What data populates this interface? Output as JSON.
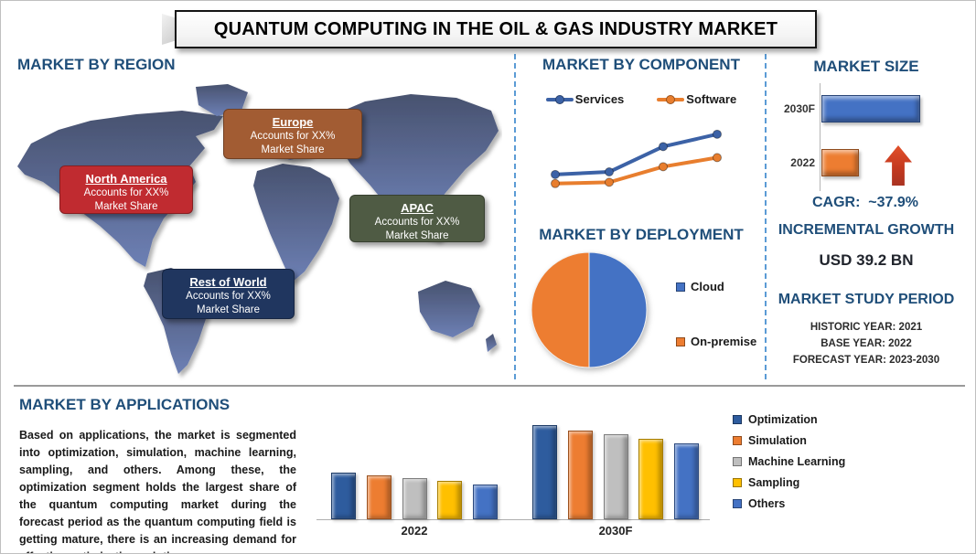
{
  "title": "QUANTUM COMPUTING IN THE OIL & GAS INDUSTRY MARKET",
  "region_section": {
    "heading": "MARKET BY REGION",
    "callouts": [
      {
        "name": "North America",
        "line1": "Accounts for XX%",
        "line2": "Market Share",
        "color": "#C02B30"
      },
      {
        "name": "Europe",
        "line1": "Accounts for XX%",
        "line2": "Market Share",
        "color": "#A25C33"
      },
      {
        "name": "APAC",
        "line1": "Accounts for XX%",
        "line2": "Market Share",
        "color": "#4F5B44"
      },
      {
        "name": "Rest of World",
        "line1": "Accounts for XX%",
        "line2": "Market Share",
        "color": "#20365F"
      }
    ]
  },
  "component_section": {
    "heading": "MARKET BY COMPONENT"
  },
  "deployment_section": {
    "heading": "MARKET BY DEPLOYMENT"
  },
  "market_size_section": {
    "heading": "MARKET SIZE",
    "cagr_label": "CAGR:",
    "cagr_value": "~37.9%"
  },
  "incremental_growth": {
    "heading": "INCREMENTAL GROWTH",
    "value": "USD 39.2 BN"
  },
  "study_period": {
    "heading": "MARKET STUDY PERIOD",
    "lines": [
      "HISTORIC YEAR: 2021",
      "BASE YEAR: 2022",
      "FORECAST YEAR: 2023-2030"
    ]
  },
  "applications_section": {
    "heading": "MARKET BY APPLICATIONS",
    "paragraph": "Based on applications, the market is segmented into optimization, simulation, machine learning, sampling, and others. Among these, the optimization segment holds the largest share of the quantum computing market during the forecast period as the quantum computing field is getting mature, there is an increasing demand for effective optimization solutions."
  },
  "chart_data": [
    {
      "id": "market-by-component",
      "type": "line",
      "title": "MARKET BY COMPONENT",
      "x": [
        1,
        2,
        3,
        4
      ],
      "series": [
        {
          "name": "Services",
          "color": "#3C62A6",
          "values": [
            1.7,
            1.9,
            3.85,
            4.8
          ]
        },
        {
          "name": "Software",
          "color": "#E87E2E",
          "values": [
            1.0,
            1.1,
            2.3,
            3.0
          ]
        }
      ],
      "ylim": [
        0,
        5.5
      ],
      "legend_position": "top",
      "grid": false,
      "axes_labeled": false
    },
    {
      "id": "market-by-deployment",
      "type": "pie",
      "title": "MARKET BY DEPLOYMENT",
      "labels": [
        "Cloud",
        "On-premise"
      ],
      "values": [
        50,
        50
      ],
      "colors": [
        "#4472C4",
        "#ED7D31"
      ],
      "legend_position": "right"
    },
    {
      "id": "market-size",
      "type": "bar",
      "orientation": "horizontal",
      "title": "MARKET SIZE",
      "categories": [
        "2030F",
        "2022"
      ],
      "values": [
        10.8,
        4.1
      ],
      "colors": [
        "#4472C4",
        "#ED7D31"
      ],
      "axes_labeled": false
    },
    {
      "id": "market-by-applications",
      "type": "bar",
      "title": "MARKET BY APPLICATIONS",
      "categories": [
        "2022",
        "2030F"
      ],
      "series": [
        {
          "name": "Optimization",
          "color": "#2E5C9E",
          "values": [
            5.1,
            10.3
          ]
        },
        {
          "name": "Simulation",
          "color": "#ED7D31",
          "values": [
            4.8,
            9.7
          ]
        },
        {
          "name": "Machine Learning",
          "color": "#BFBFBF",
          "values": [
            4.5,
            9.3
          ]
        },
        {
          "name": "Sampling",
          "color": "#FFC000",
          "values": [
            4.2,
            8.8
          ]
        },
        {
          "name": "Others",
          "color": "#4472C4",
          "values": [
            3.8,
            8.3
          ]
        }
      ],
      "legend_position": "right",
      "grid": false,
      "axes_labeled": false
    }
  ]
}
